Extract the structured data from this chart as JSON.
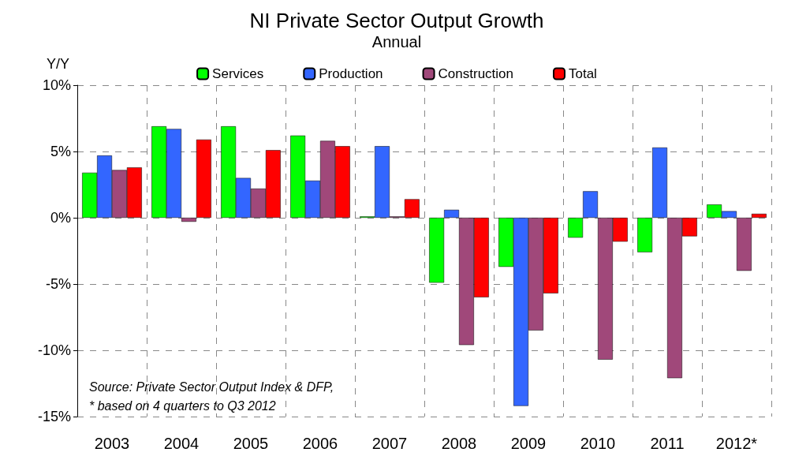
{
  "chart_data": {
    "type": "bar",
    "title": "NI Private Sector Output Growth",
    "subtitle": "Annual",
    "ylabel": "Y/Y",
    "categories": [
      "2003",
      "2004",
      "2005",
      "2006",
      "2007",
      "2008",
      "2009",
      "2010",
      "2011",
      "2012*"
    ],
    "series": [
      {
        "name": "Services",
        "color": "#00ff00",
        "values": [
          3.4,
          6.9,
          6.9,
          6.2,
          0.1,
          -4.9,
          -3.7,
          -1.5,
          -2.6,
          1.0
        ]
      },
      {
        "name": "Production",
        "color": "#3366ff",
        "values": [
          4.7,
          6.7,
          3.0,
          2.8,
          5.4,
          0.6,
          -14.2,
          2.0,
          5.3,
          0.5
        ]
      },
      {
        "name": "Construction",
        "color": "#a0487a",
        "values": [
          3.6,
          -0.3,
          2.2,
          5.8,
          0.1,
          -9.6,
          -8.5,
          -10.7,
          -12.1,
          -4.0
        ]
      },
      {
        "name": "Total",
        "color": "#ff0000",
        "values": [
          3.8,
          5.9,
          5.1,
          5.4,
          1.4,
          -6.0,
          -5.7,
          -1.8,
          -1.4,
          0.3
        ]
      }
    ],
    "ylim": [
      -15,
      10
    ],
    "yticks": [
      {
        "value": -15,
        "label": "-15%"
      },
      {
        "value": -10,
        "label": "-10%"
      },
      {
        "value": -5,
        "label": "-5%"
      },
      {
        "value": 0,
        "label": "0%"
      },
      {
        "value": 5,
        "label": "5%"
      },
      {
        "value": 10,
        "label": "10%"
      }
    ],
    "grid": true,
    "legend": "top",
    "annotations": [
      "Source: Private Sector Output Index & DFP,",
      "* based on 4 quarters to Q3 2012"
    ]
  }
}
